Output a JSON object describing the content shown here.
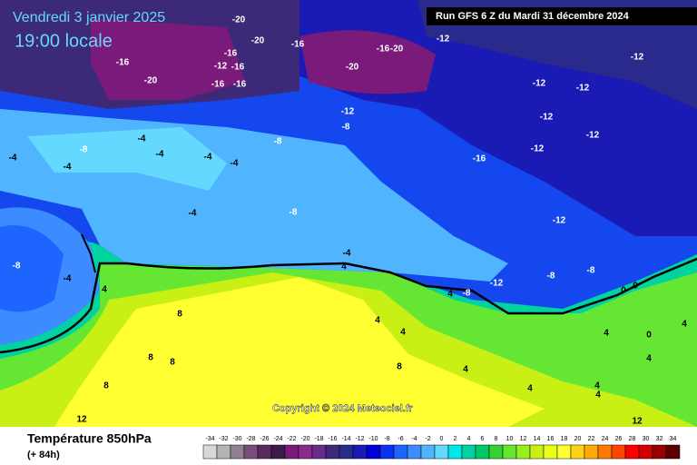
{
  "header": {
    "date": "Vendredi 3 janvier 2025",
    "time": "19:00 locale",
    "run": "Run GFS 6 Z du Mardi 31 décembre 2024"
  },
  "copyright": "Copyright © 2024 Meteociel.fr",
  "legend": {
    "title": "Température 850hPa",
    "lead": "(+ 84h)",
    "values": [
      -34,
      -32,
      -30,
      -28,
      -26,
      -24,
      -22,
      -20,
      -18,
      -16,
      -14,
      -12,
      -10,
      -8,
      -6,
      -4,
      -2,
      0,
      2,
      4,
      6,
      8,
      10,
      12,
      14,
      16,
      18,
      20,
      22,
      24,
      26,
      28,
      30,
      32,
      34
    ],
    "colors": [
      "#d8d8d8",
      "#b4b4b4",
      "#908090",
      "#7a4d7a",
      "#5a2a5a",
      "#3c1a4a",
      "#7a1a7a",
      "#8a2a8a",
      "#6a2a8a",
      "#3c2a78",
      "#2a2a8c",
      "#1a1ab4",
      "#0000d8",
      "#0a32f0",
      "#1e64ff",
      "#3c8cff",
      "#50b4ff",
      "#64d8ff",
      "#00e8e8",
      "#00d2a0",
      "#00c864",
      "#32d232",
      "#64e632",
      "#96f01e",
      "#c8f014",
      "#e6ff14",
      "#ffff32",
      "#ffd214",
      "#ffaa00",
      "#ff7800",
      "#ff4600",
      "#ff0000",
      "#d20000",
      "#960000",
      "#5a0000"
    ]
  },
  "map": {
    "contour_labels": [
      -20,
      -20,
      -16,
      -16,
      -20,
      -12,
      -16,
      -16,
      -16,
      -16,
      -20,
      -16,
      -20,
      -12,
      -12,
      -12,
      -12,
      -12,
      -12,
      -8,
      -12,
      -4,
      -8,
      -8,
      -12,
      -16,
      -4,
      -4,
      -4,
      -4,
      -4,
      -4,
      -8,
      -12,
      -8,
      -4,
      -4,
      4,
      4,
      4,
      -8,
      -12,
      -8,
      -8,
      0,
      0,
      8,
      4,
      4,
      0,
      4,
      4,
      8,
      8,
      8,
      4,
      8,
      4,
      4,
      4,
      4,
      12,
      12
    ]
  }
}
